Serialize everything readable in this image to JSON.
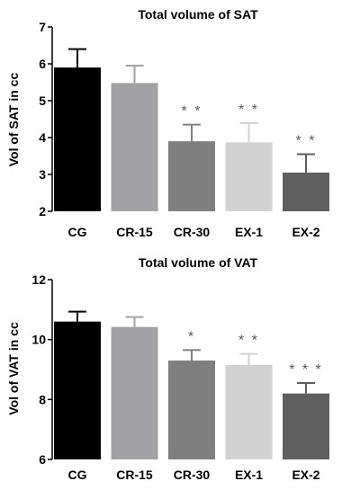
{
  "chart_data": [
    {
      "type": "bar",
      "title": "Total volume of SAT",
      "ylabel": "Vol of SAT in cc",
      "xlabel": "",
      "categories": [
        "CG",
        "CR-15",
        "CR-30",
        "EX-1",
        "EX-2"
      ],
      "values": [
        5.9,
        5.48,
        3.9,
        3.87,
        3.05
      ],
      "errors": [
        0.5,
        0.47,
        0.45,
        0.52,
        0.5
      ],
      "significance": [
        "",
        "",
        "**",
        "**",
        "**"
      ],
      "colors": [
        "#000000",
        "#a2a2a5",
        "#7f7f7f",
        "#d2d2d2",
        "#5f5f5f"
      ],
      "ylim": [
        2,
        7
      ],
      "yticks": [
        2,
        3,
        4,
        5,
        6,
        7
      ],
      "grid": false
    },
    {
      "type": "bar",
      "title": "Total volume of VAT",
      "ylabel": "Vol of VAT in cc",
      "xlabel": "",
      "categories": [
        "CG",
        "CR-15",
        "CR-30",
        "EX-1",
        "EX-2"
      ],
      "values": [
        10.6,
        10.42,
        9.3,
        9.15,
        8.2
      ],
      "errors": [
        0.33,
        0.33,
        0.35,
        0.37,
        0.35
      ],
      "significance": [
        "",
        "",
        "*",
        "**",
        "***"
      ],
      "colors": [
        "#000000",
        "#a2a2a5",
        "#7f7f7f",
        "#d2d2d2",
        "#5f5f5f"
      ],
      "ylim": [
        6,
        12
      ],
      "yticks": [
        6,
        8,
        10,
        12
      ],
      "grid": false
    }
  ]
}
